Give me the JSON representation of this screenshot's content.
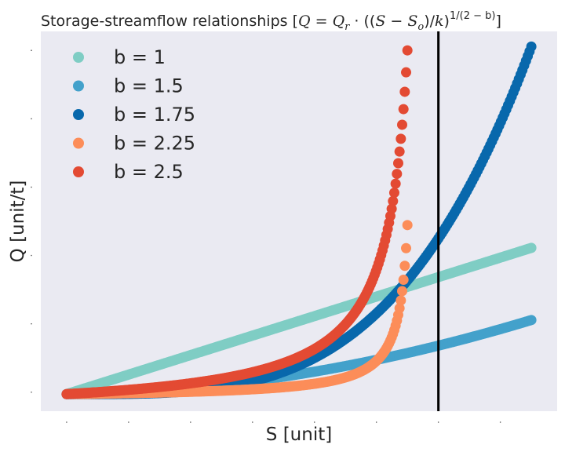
{
  "chart_data": {
    "type": "scatter",
    "title": {
      "prefix": "Storage-streamflow relationships [",
      "Q": "Q",
      "eq": " = ",
      "Q2": "Q",
      "r": "r",
      "dot": " · ((",
      "S": "S",
      "minus": " − ",
      "S2": "S",
      "o": "o",
      "div": ")/",
      "k": "k",
      "close": ")",
      "exp": "1/(2 − b)",
      "suffix": "]"
    },
    "xlabel": "S [unit]",
    "ylabel": "Q [unit/t]",
    "tick_labels_visible": false,
    "grid": false,
    "background": "#eaeaf2",
    "xlim": [
      0.0,
      1.0
    ],
    "ylim": [
      0.0,
      1.0
    ],
    "vline": {
      "x": 0.77,
      "color": "#000000"
    },
    "legend": {
      "placement": "top-left"
    },
    "series": [
      {
        "name": "b = 1",
        "b": 1.0,
        "color": "#7fcdc4",
        "x_range": [
          0.05,
          0.95
        ],
        "y_start": 0.045,
        "y_end": 0.43
      },
      {
        "name": "b = 1.5",
        "b": 1.5,
        "color": "#43a1cb",
        "x_range": [
          0.05,
          0.95
        ],
        "y_start": 0.045,
        "y_end": 0.24
      },
      {
        "name": "b = 1.75",
        "b": 1.75,
        "color": "#0868ac",
        "x_range": [
          0.05,
          0.95
        ],
        "y_start": 0.045,
        "y_end": 0.96
      },
      {
        "name": "b = 2.25",
        "b": 2.25,
        "color": "#fc8d59",
        "x_range": [
          0.05,
          0.71
        ],
        "y_start": 0.045,
        "y_end": 0.49
      },
      {
        "name": "b = 2.5",
        "b": 2.5,
        "color": "#e34a33",
        "x_range": [
          0.05,
          0.71
        ],
        "y_start": 0.045,
        "y_end": 0.95
      }
    ]
  }
}
